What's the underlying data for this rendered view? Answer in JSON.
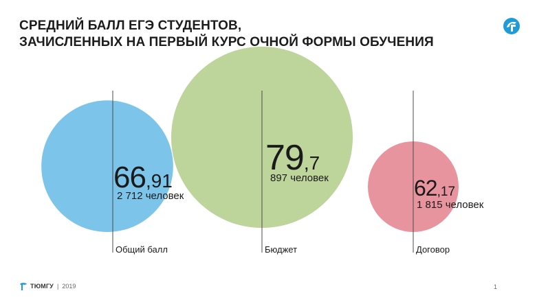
{
  "slide": {
    "title_line1": "СРЕДНИЙ БАЛЛ ЕГЭ СТУДЕНТОВ,",
    "title_line2": "ЗАЧИСЛЕННЫХ НА ПЕРВЫЙ КУРС ОЧНОЙ ФОРМЫ ОБУЧЕНИЯ",
    "footer_brand": "ТЮМГУ",
    "footer_separator": "|",
    "footer_year": "2019",
    "page_number": "1",
    "logo_icon": "tyumgu-logo-icon"
  },
  "chart_data": {
    "type": "bubble",
    "title": "СРЕДНИЙ БАЛЛ ЕГЭ СТУДЕНТОВ, ЗАЧИСЛЕННЫХ НА ПЕРВЫЙ КУРС ОЧНОЙ ФОРМЫ ОБУЧЕНИЯ",
    "categories": [
      "Общий балл",
      "Бюджет",
      "Договор"
    ],
    "series": [
      {
        "values": [
          66.91,
          79.7,
          62.17
        ],
        "value_int": [
          "66",
          "79",
          "62"
        ],
        "value_frac": [
          ",91",
          ",7",
          ",17"
        ],
        "counts": [
          "2 712 человек",
          "897 человек",
          "1 815 человек"
        ],
        "colors": [
          "#7cc4ea",
          "#bdd49b",
          "#e8949f"
        ]
      }
    ]
  }
}
